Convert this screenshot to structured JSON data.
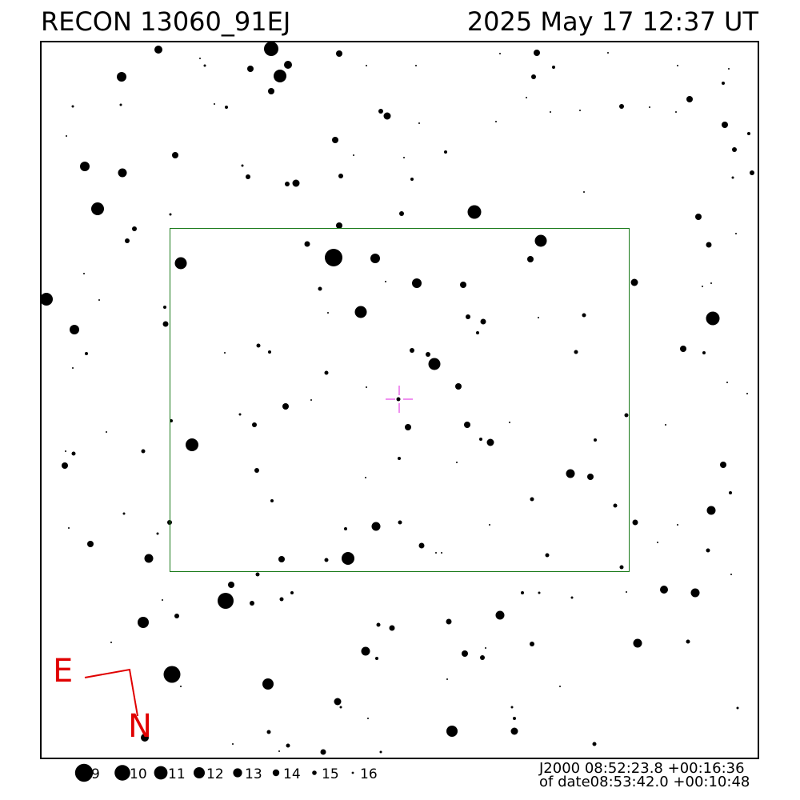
{
  "header": {
    "title": "RECON 13060_91EJ",
    "timestamp": "2025 May 17 12:37 UT"
  },
  "compass": {
    "east": "E",
    "north": "N"
  },
  "legend": {
    "magnitudes": [
      9,
      10,
      11,
      12,
      13,
      14,
      15,
      16
    ]
  },
  "coordinates": {
    "j2000": {
      "label": "J2000",
      "ra": "08:52:23.8",
      "dec": "+00:16:36"
    },
    "of_date": {
      "label": "of date",
      "ra": "08:53:42.0",
      "dec": "+00:10:48"
    }
  }
}
